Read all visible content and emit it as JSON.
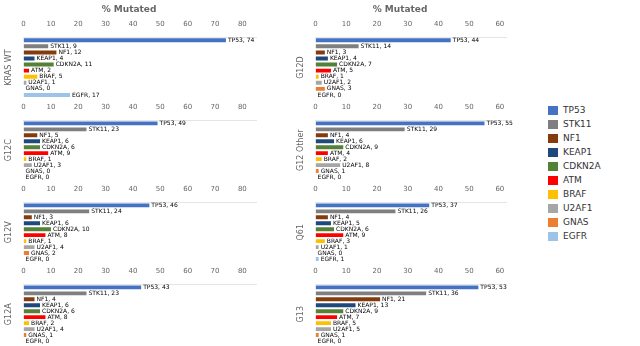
{
  "chart_data": [
    {
      "type": "bar",
      "orientation": "horizontal",
      "title": "% Mutated",
      "ylabel": "KRAS WT",
      "categories": [
        "TP53",
        "STK11",
        "NF1",
        "KEAP1",
        "CDKN2A",
        "ATM",
        "BRAF",
        "U2AF1",
        "GNAS",
        "EGFR"
      ],
      "values": [
        74,
        9,
        12,
        4,
        11,
        2,
        5,
        1,
        0,
        17
      ],
      "value_labels": [
        "TP53, 74",
        "STK11, 9",
        "NF1, 12",
        "KEAP1, 4",
        "CDKN2A, 11",
        "ATM, 2",
        "BRAF, 5",
        "U2AF1, 1",
        "GNAS, 0",
        "EGFR, 17"
      ],
      "colors": [
        "#4472C4",
        "#7F7F7F",
        "#843C0C",
        "#1F497D",
        "#538135",
        "#FF0000",
        "#FFC000",
        "#A6A6A6",
        "#ED7D31",
        "#9DC3E6"
      ],
      "xlim": [
        0,
        85
      ],
      "xticks": [
        0,
        10,
        20,
        30,
        40,
        50,
        60,
        70,
        80
      ],
      "grid": false,
      "data_labels": true,
      "tick_labels": "x",
      "legend": "right"
    },
    {
      "type": "bar",
      "orientation": "horizontal",
      "ylabel": "G12C",
      "categories": [
        "TP53",
        "STK11",
        "NF1",
        "KEAP1",
        "CDKN2A",
        "ATM",
        "BRAF",
        "U2AF1",
        "GNAS",
        "EGFR"
      ],
      "values": [
        49,
        23,
        5,
        6,
        6,
        9,
        1,
        3,
        0,
        0
      ],
      "value_labels": [
        "TP53, 49",
        "STK11, 23",
        "NF1, 5",
        "KEAP1, 6",
        "CDKN2A, 6",
        "ATM, 9",
        "BRAF, 1",
        "U2AF1, 3",
        "GNAS, 0",
        "EGFR, 0"
      ],
      "colors": [
        "#4472C4",
        "#7F7F7F",
        "#843C0C",
        "#1F497D",
        "#538135",
        "#FF0000",
        "#FFC000",
        "#A6A6A6",
        "#ED7D31",
        "#9DC3E6"
      ],
      "xlim": [
        0,
        85
      ],
      "xticks": [
        0,
        10,
        20,
        30,
        40,
        50,
        60,
        70,
        80
      ],
      "grid": false,
      "data_labels": true,
      "tick_labels": "x"
    },
    {
      "type": "bar",
      "orientation": "horizontal",
      "ylabel": "G12V",
      "categories": [
        "TP53",
        "STK11",
        "NF1",
        "KEAP1",
        "CDKN2A",
        "ATM",
        "BRAF",
        "U2AF1",
        "GNAS",
        "EGFR"
      ],
      "values": [
        46,
        24,
        3,
        6,
        10,
        8,
        1,
        4,
        2,
        0
      ],
      "value_labels": [
        "TP53, 46",
        "STK11, 24",
        "NF1, 3",
        "KEAP1, 6",
        "CDKN2A, 10",
        "ATM, 8",
        "BRAF, 1",
        "U2AF1, 4",
        "GNAS, 2",
        "EGFR, 0"
      ],
      "colors": [
        "#4472C4",
        "#7F7F7F",
        "#843C0C",
        "#1F497D",
        "#538135",
        "#FF0000",
        "#FFC000",
        "#A6A6A6",
        "#ED7D31",
        "#9DC3E6"
      ],
      "xlim": [
        0,
        85
      ],
      "xticks": [
        0,
        10,
        20,
        30,
        40,
        50,
        60,
        70,
        80
      ],
      "grid": false,
      "data_labels": true,
      "tick_labels": "x"
    },
    {
      "type": "bar",
      "orientation": "horizontal",
      "ylabel": "G12A",
      "categories": [
        "TP53",
        "STK11",
        "NF1",
        "KEAP1",
        "CDKN2A",
        "ATM",
        "BRAF",
        "U2AF1",
        "GNAS",
        "EGFR"
      ],
      "values": [
        43,
        23,
        4,
        6,
        6,
        8,
        2,
        4,
        1,
        0
      ],
      "value_labels": [
        "TP53, 43",
        "STK11, 23",
        "NF1, 4",
        "KEAP1, 6",
        "CDKN2A, 6",
        "ATM, 8",
        "BRAF, 2",
        "U2AF1, 4",
        "GNAS, 1",
        "EGFR, 0"
      ],
      "colors": [
        "#4472C4",
        "#7F7F7F",
        "#843C0C",
        "#1F497D",
        "#538135",
        "#FF0000",
        "#FFC000",
        "#A6A6A6",
        "#ED7D31",
        "#9DC3E6"
      ],
      "xlim": [
        0,
        85
      ],
      "xticks": [
        0,
        10,
        20,
        30,
        40,
        50,
        60,
        70,
        80
      ],
      "grid": false,
      "data_labels": true,
      "tick_labels": "x"
    },
    {
      "type": "bar",
      "orientation": "horizontal",
      "title": "% Mutated",
      "ylabel": "G12D",
      "categories": [
        "TP53",
        "STK11",
        "NF1",
        "KEAP1",
        "CDKN2A",
        "ATM",
        "BRAF",
        "U2AF1",
        "GNAS",
        "EGFR"
      ],
      "values": [
        44,
        14,
        3,
        4,
        7,
        5,
        1,
        2,
        3,
        0
      ],
      "value_labels": [
        "TP53, 44",
        "STK11, 14",
        "NF1, 3",
        "KEAP1, 4",
        "CDKN2A, 7",
        "ATM, 5",
        "BRAF, 1",
        "U2AF1, 2",
        "GNAS, 3",
        "EGFR, 0"
      ],
      "colors": [
        "#4472C4",
        "#7F7F7F",
        "#843C0C",
        "#1F497D",
        "#538135",
        "#FF0000",
        "#FFC000",
        "#A6A6A6",
        "#ED7D31",
        "#9DC3E6"
      ],
      "xlim": [
        0,
        62
      ],
      "xticks": [
        0,
        10,
        20,
        30,
        40,
        50,
        60
      ],
      "grid": false,
      "data_labels": true,
      "tick_labels": "x"
    },
    {
      "type": "bar",
      "orientation": "horizontal",
      "ylabel": "G12 Other",
      "categories": [
        "TP53",
        "STK11",
        "NF1",
        "KEAP1",
        "CDKN2A",
        "ATM",
        "BRAF",
        "U2AF1",
        "GNAS",
        "EGFR"
      ],
      "values": [
        55,
        29,
        4,
        6,
        9,
        4,
        2,
        8,
        1,
        0
      ],
      "value_labels": [
        "TP53, 55",
        "STK11, 29",
        "NF1, 4",
        "KEAP1, 6",
        "CDKN2A, 9",
        "ATM, 4",
        "BRAF, 2",
        "U2AF1, 8",
        "GNAS, 1",
        "EGFR, 0"
      ],
      "colors": [
        "#4472C4",
        "#7F7F7F",
        "#843C0C",
        "#1F497D",
        "#538135",
        "#FF0000",
        "#FFC000",
        "#A6A6A6",
        "#ED7D31",
        "#9DC3E6"
      ],
      "xlim": [
        0,
        62
      ],
      "xticks": [
        0,
        10,
        20,
        30,
        40,
        50,
        60
      ],
      "grid": false,
      "data_labels": true,
      "tick_labels": "x"
    },
    {
      "type": "bar",
      "orientation": "horizontal",
      "ylabel": "Q61",
      "categories": [
        "TP53",
        "STK11",
        "NF1",
        "KEAP1",
        "CDKN2A",
        "ATM",
        "BRAF",
        "U2AF1",
        "GNAS",
        "EGFR"
      ],
      "values": [
        37,
        26,
        4,
        5,
        6,
        9,
        3,
        1,
        0,
        1
      ],
      "value_labels": [
        "TP53, 37",
        "STK11, 26",
        "NF1, 4",
        "KEAP1, 5",
        "CDKN2A, 6",
        "ATM, 9",
        "BRAF, 3",
        "U2AF1, 1",
        "GNAS, 0",
        "EGFR, 1"
      ],
      "colors": [
        "#4472C4",
        "#7F7F7F",
        "#843C0C",
        "#1F497D",
        "#538135",
        "#FF0000",
        "#FFC000",
        "#A6A6A6",
        "#ED7D31",
        "#9DC3E6"
      ],
      "xlim": [
        0,
        62
      ],
      "xticks": [
        0,
        10,
        20,
        30,
        40,
        50,
        60
      ],
      "grid": false,
      "data_labels": true,
      "tick_labels": "x"
    },
    {
      "type": "bar",
      "orientation": "horizontal",
      "ylabel": "G13",
      "categories": [
        "TP53",
        "STK11",
        "NF1",
        "KEAP1",
        "CDKN2A",
        "ATM",
        "BRAF",
        "U2AF1",
        "GNAS",
        "EGFR"
      ],
      "values": [
        53,
        36,
        21,
        13,
        9,
        7,
        5,
        5,
        1,
        0
      ],
      "value_labels": [
        "TP53, 53",
        "STK11, 36",
        "NF1, 21",
        "KEAP1, 13",
        "CDKN2A, 9",
        "ATM, 7",
        "BRAF, 5",
        "U2AF1, 5",
        "GNAS, 1",
        "EGFR, 0"
      ],
      "colors": [
        "#4472C4",
        "#7F7F7F",
        "#843C0C",
        "#1F497D",
        "#538135",
        "#FF0000",
        "#FFC000",
        "#A6A6A6",
        "#ED7D31",
        "#9DC3E6"
      ],
      "xlim": [
        0,
        62
      ],
      "xticks": [
        0,
        10,
        20,
        30,
        40,
        50,
        60
      ],
      "grid": false,
      "data_labels": true,
      "tick_labels": "x"
    }
  ]
}
